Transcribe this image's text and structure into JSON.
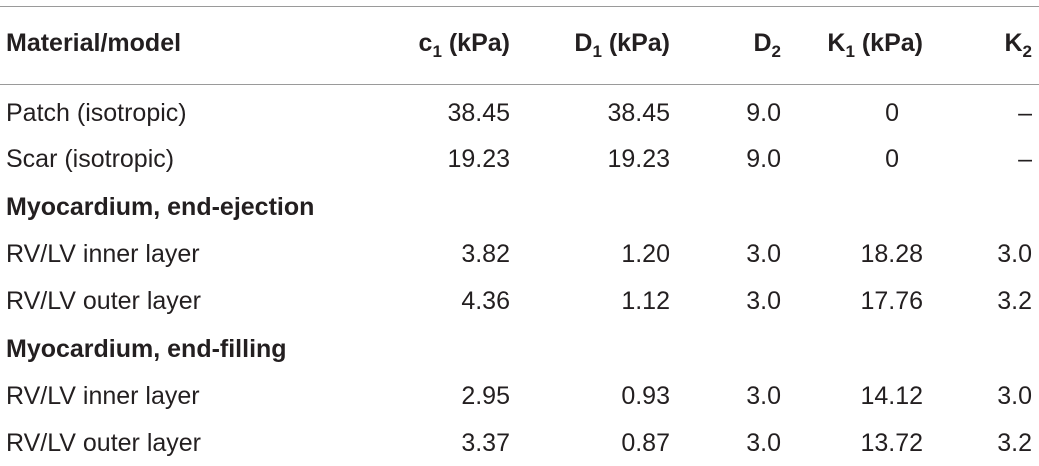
{
  "table": {
    "header": {
      "material": "Material/model",
      "c1": {
        "base": "c",
        "sub": "1",
        "unit": " (kPa)"
      },
      "d1": {
        "base": "D",
        "sub": "1",
        "unit": " (kPa)"
      },
      "d2": {
        "base": "D",
        "sub": "2",
        "unit": ""
      },
      "k1": {
        "base": "K",
        "sub": "1",
        "unit": " (kPa)"
      },
      "k2": {
        "base": "K",
        "sub": "2",
        "unit": ""
      }
    },
    "rows": [
      {
        "name": "Patch (isotropic)",
        "c1": "38.45",
        "d1": "38.45",
        "d2": "9.0",
        "k1": "0",
        "k2": "–"
      },
      {
        "name": "Scar (isotropic)",
        "c1": "19.23",
        "d1": "19.23",
        "d2": "9.0",
        "k1": "0",
        "k2": "–"
      },
      {
        "section": "Myocardium, end-ejection"
      },
      {
        "name": "RV/LV inner layer",
        "c1": "3.82",
        "d1": "1.20",
        "d2": "3.0",
        "k1": "18.28",
        "k2": "3.0"
      },
      {
        "name": "RV/LV outer layer",
        "c1": "4.36",
        "d1": "1.12",
        "d2": "3.0",
        "k1": "17.76",
        "k2": "3.2"
      },
      {
        "section": "Myocardium, end-filling"
      },
      {
        "name": "RV/LV inner layer",
        "c1": "2.95",
        "d1": "0.93",
        "d2": "3.0",
        "k1": "14.12",
        "k2": "3.0"
      },
      {
        "name": "RV/LV outer layer",
        "c1": "3.37",
        "d1": "0.87",
        "d2": "3.0",
        "k1": "13.72",
        "k2": "3.2"
      }
    ]
  }
}
